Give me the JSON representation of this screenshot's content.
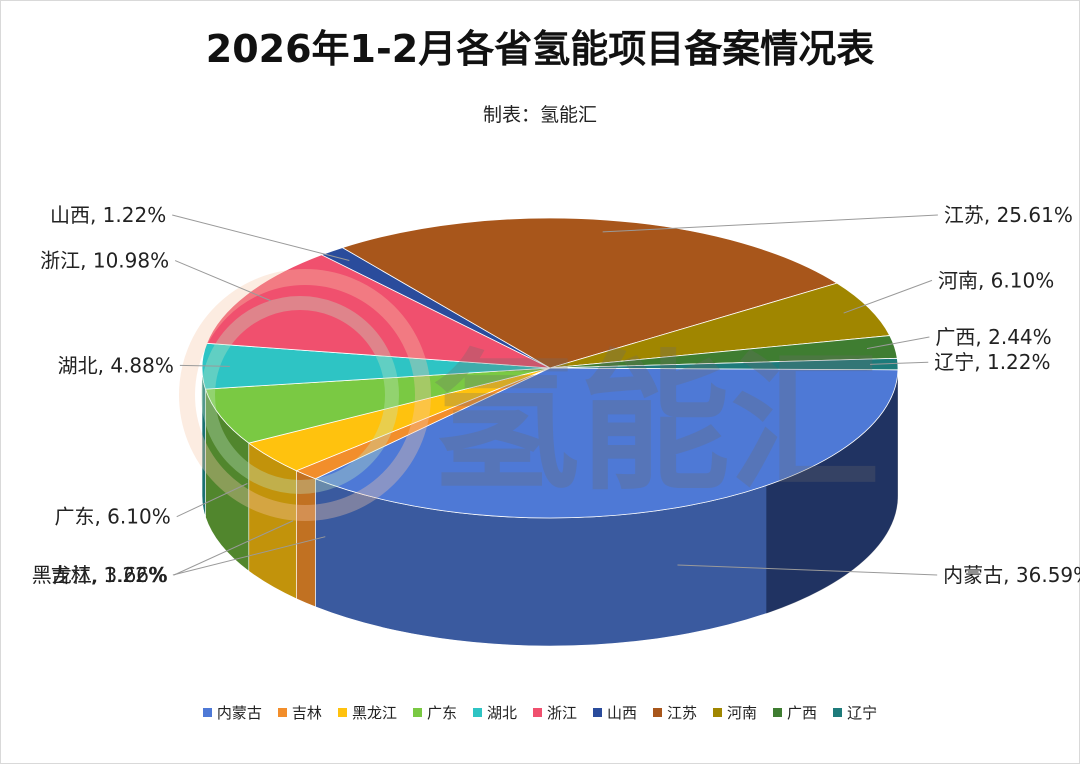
{
  "chart_data": {
    "type": "pie",
    "title": "2026年1-2月各省氢能项目备案情况表",
    "subtitle": "制表：氢能汇",
    "watermark": "氢能汇",
    "legend_position": "bottom",
    "slices": [
      {
        "name": "内蒙古",
        "value": 36.59,
        "label": "内蒙古, 36.59%",
        "color": "#4e79d6"
      },
      {
        "name": "吉林",
        "value": 1.22,
        "label": "吉林, 1.22%",
        "color": "#f28e2b"
      },
      {
        "name": "黑龙江",
        "value": 3.66,
        "label": "黑龙江, 3.66%",
        "color": "#ffc20e"
      },
      {
        "name": "广东",
        "value": 6.1,
        "label": "广东, 6.10%",
        "color": "#7ac943"
      },
      {
        "name": "湖北",
        "value": 4.88,
        "label": "湖北, 4.88%",
        "color": "#2ec4c4"
      },
      {
        "name": "浙江",
        "value": 10.98,
        "label": "浙江, 10.98%",
        "color": "#f0506e"
      },
      {
        "name": "山西",
        "value": 1.22,
        "label": "山西, 1.22%",
        "color": "#2a4c9c"
      },
      {
        "name": "江苏",
        "value": 25.61,
        "label": "江苏, 25.61%",
        "color": "#a8561b"
      },
      {
        "name": "河南",
        "value": 6.1,
        "label": "河南, 6.10%",
        "color": "#a08600"
      },
      {
        "name": "广西",
        "value": 2.44,
        "label": "广西, 2.44%",
        "color": "#3f7d31"
      },
      {
        "name": "辽宁",
        "value": 1.22,
        "label": "辽宁, 1.22%",
        "color": "#1e7b7b"
      }
    ]
  }
}
